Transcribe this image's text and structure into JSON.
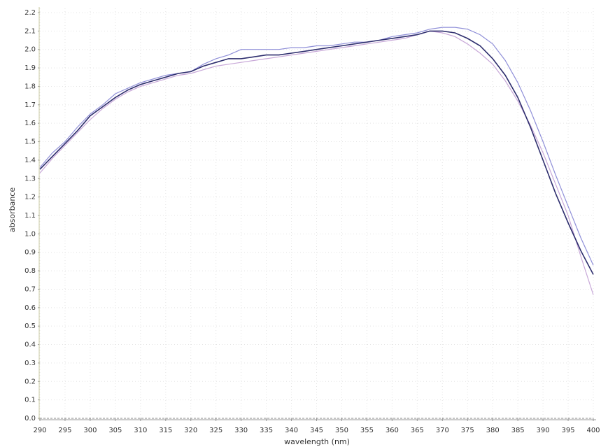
{
  "chart_data": {
    "type": "line",
    "xlabel": "wavelength (nm)",
    "ylabel": "absorbance",
    "x": [
      290,
      292.5,
      295,
      297.5,
      300,
      302.5,
      305,
      307.5,
      310,
      312.5,
      315,
      317.5,
      320,
      322.5,
      325,
      327.5,
      330,
      332.5,
      335,
      337.5,
      340,
      342.5,
      345,
      347.5,
      350,
      352.5,
      355,
      357.5,
      360,
      362.5,
      365,
      367.5,
      370,
      372.5,
      375,
      377.5,
      380,
      382.5,
      385,
      387.5,
      390,
      392.5,
      395,
      397.5,
      400
    ],
    "series": [
      {
        "color": "#8f8fd8",
        "values": [
          1.36,
          1.44,
          1.5,
          1.58,
          1.65,
          1.7,
          1.76,
          1.79,
          1.82,
          1.84,
          1.86,
          1.87,
          1.88,
          1.92,
          1.95,
          1.97,
          2.0,
          2.0,
          2.0,
          2.0,
          2.01,
          2.01,
          2.02,
          2.02,
          2.03,
          2.04,
          2.04,
          2.05,
          2.07,
          2.08,
          2.09,
          2.11,
          2.12,
          2.12,
          2.11,
          2.08,
          2.03,
          1.94,
          1.82,
          1.67,
          1.5,
          1.32,
          1.15,
          0.98,
          0.83
        ]
      },
      {
        "color": "#c8a8d8",
        "values": [
          1.33,
          1.41,
          1.48,
          1.55,
          1.62,
          1.68,
          1.73,
          1.77,
          1.8,
          1.82,
          1.84,
          1.86,
          1.87,
          1.89,
          1.91,
          1.92,
          1.93,
          1.94,
          1.95,
          1.96,
          1.97,
          1.98,
          1.99,
          2.0,
          2.01,
          2.02,
          2.03,
          2.04,
          2.05,
          2.06,
          2.08,
          2.1,
          2.09,
          2.07,
          2.03,
          1.98,
          1.92,
          1.83,
          1.72,
          1.59,
          1.44,
          1.27,
          1.1,
          0.88,
          0.67
        ]
      },
      {
        "color": "#2e2e6e",
        "values": [
          1.35,
          1.42,
          1.49,
          1.56,
          1.64,
          1.69,
          1.74,
          1.78,
          1.81,
          1.83,
          1.85,
          1.87,
          1.88,
          1.91,
          1.93,
          1.95,
          1.95,
          1.96,
          1.97,
          1.97,
          1.98,
          1.99,
          2.0,
          2.01,
          2.02,
          2.03,
          2.04,
          2.05,
          2.06,
          2.07,
          2.08,
          2.1,
          2.1,
          2.09,
          2.06,
          2.02,
          1.95,
          1.86,
          1.74,
          1.58,
          1.4,
          1.22,
          1.06,
          0.91,
          0.78
        ]
      }
    ],
    "xlim": [
      290,
      400
    ],
    "xticks": [
      290,
      295,
      300,
      305,
      310,
      315,
      320,
      325,
      330,
      335,
      340,
      345,
      350,
      355,
      360,
      365,
      370,
      375,
      380,
      385,
      390,
      395,
      400
    ],
    "ylim": [
      0,
      2.2
    ],
    "yticks": [
      {
        "value": 0,
        "label": "0.0"
      },
      0.1,
      0.2,
      0.3,
      0.4,
      0.5,
      0.6,
      0.7,
      0.8,
      0.9,
      {
        "value": 1,
        "label": "1.0"
      },
      1.1,
      1.2,
      1.3,
      1.4,
      1.5,
      1.6,
      1.7,
      1.8,
      1.9,
      {
        "value": 2,
        "label": "2.0"
      },
      2.1,
      2.2
    ],
    "grid": true
  }
}
